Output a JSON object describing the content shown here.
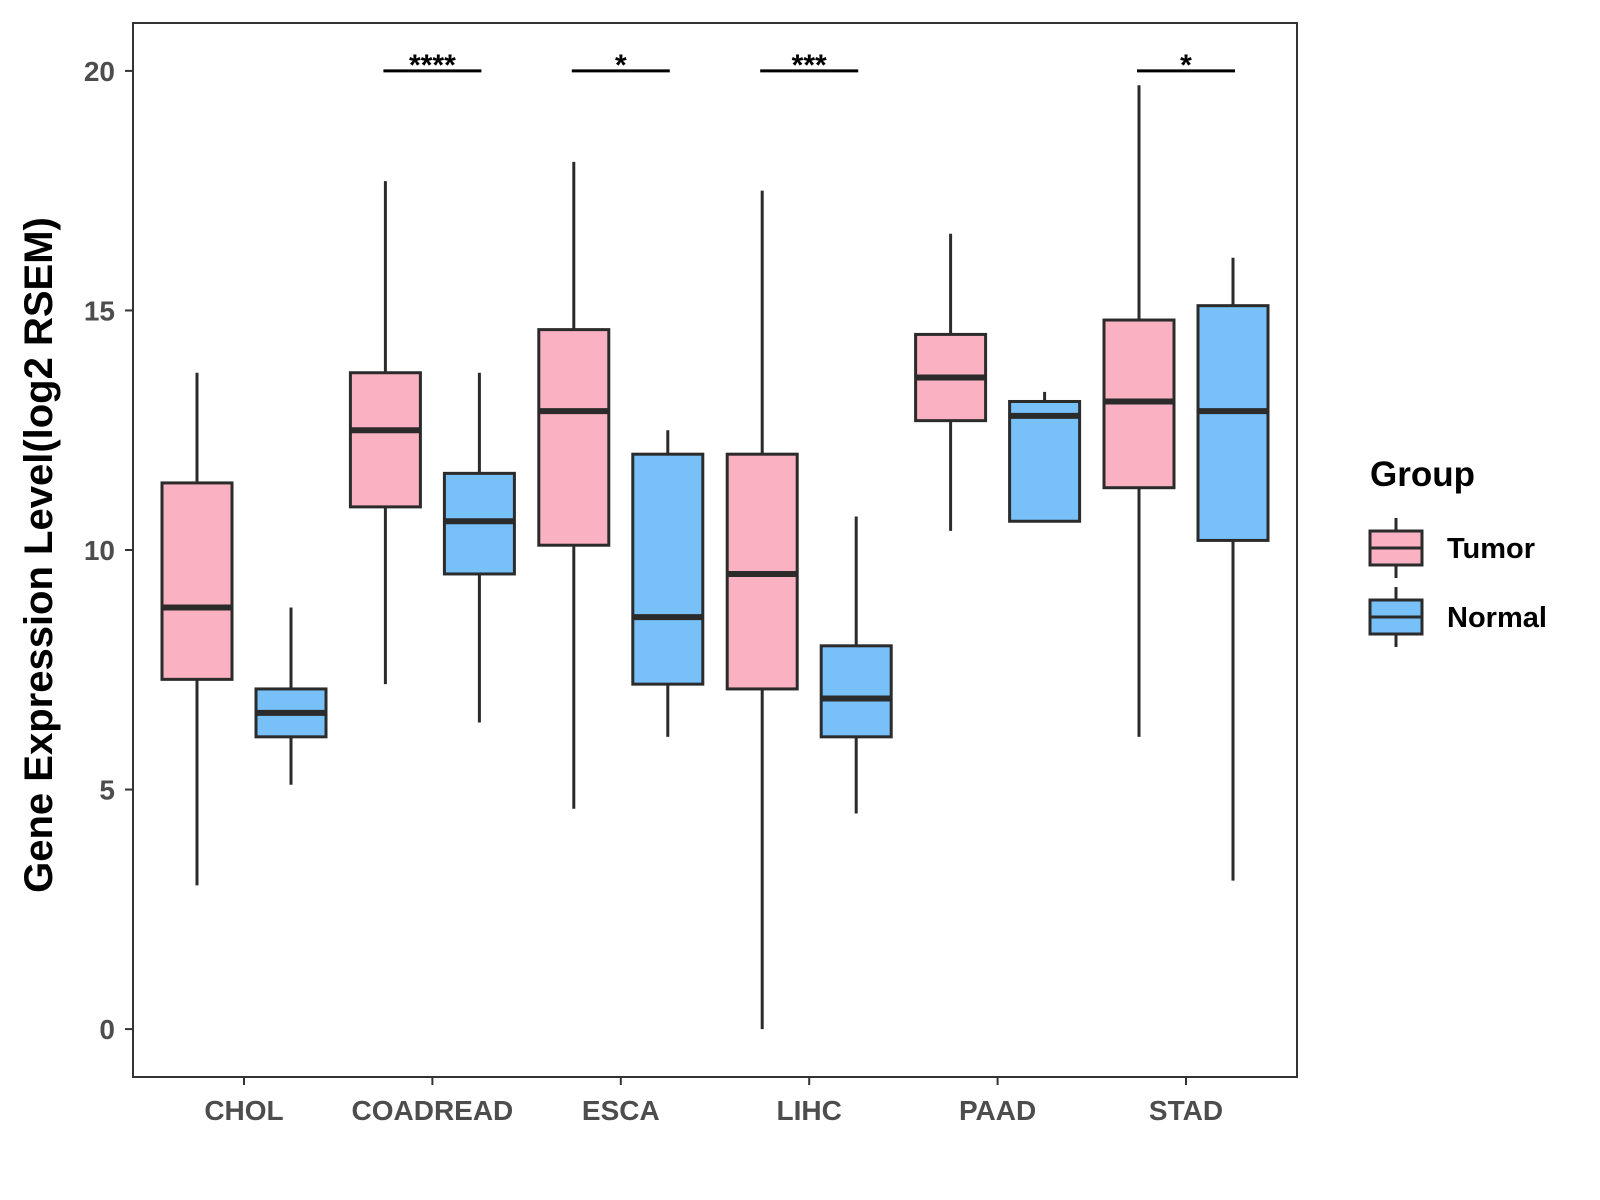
{
  "chart_data": {
    "type": "box",
    "title": "",
    "xlabel": "",
    "ylabel": "Gene Expression Level(log2 RSEM)",
    "ylim": [
      -1,
      21
    ],
    "yticks": [
      0,
      5,
      10,
      15,
      20
    ],
    "grid": false,
    "categories": [
      "CHOL",
      "COADREAD",
      "ESCA",
      "LIHC",
      "PAAD",
      "STAD"
    ],
    "legend": {
      "title": "Group",
      "position": "right"
    },
    "series": [
      {
        "name": "Tumor",
        "color": "#FAB1C2",
        "boxes": [
          {
            "category": "CHOL",
            "min": 3.0,
            "q1": 7.3,
            "median": 8.8,
            "q3": 11.4,
            "max": 13.7
          },
          {
            "category": "COADREAD",
            "min": 7.2,
            "q1": 10.9,
            "median": 12.5,
            "q3": 13.7,
            "max": 17.7
          },
          {
            "category": "ESCA",
            "min": 4.6,
            "q1": 10.1,
            "median": 12.9,
            "q3": 14.6,
            "max": 18.1
          },
          {
            "category": "LIHC",
            "min": 0.0,
            "q1": 7.1,
            "median": 9.5,
            "q3": 12.0,
            "max": 17.5
          },
          {
            "category": "PAAD",
            "min": 10.4,
            "q1": 12.7,
            "median": 13.6,
            "q3": 14.5,
            "max": 16.6
          },
          {
            "category": "STAD",
            "min": 6.1,
            "q1": 11.3,
            "median": 13.1,
            "q3": 14.8,
            "max": 19.7
          }
        ]
      },
      {
        "name": "Normal",
        "color": "#78C1F8",
        "boxes": [
          {
            "category": "CHOL",
            "min": 5.1,
            "q1": 6.1,
            "median": 6.6,
            "q3": 7.1,
            "max": 8.8
          },
          {
            "category": "COADREAD",
            "min": 6.4,
            "q1": 9.5,
            "median": 10.6,
            "q3": 11.6,
            "max": 13.7
          },
          {
            "category": "ESCA",
            "min": 6.1,
            "q1": 7.2,
            "median": 8.6,
            "q3": 12.0,
            "max": 12.5
          },
          {
            "category": "LIHC",
            "min": 4.5,
            "q1": 6.1,
            "median": 6.9,
            "q3": 8.0,
            "max": 10.7
          },
          {
            "category": "PAAD",
            "min": 10.6,
            "q1": 10.6,
            "median": 12.8,
            "q3": 13.1,
            "max": 13.3
          },
          {
            "category": "STAD",
            "min": 3.1,
            "q1": 10.2,
            "median": 12.9,
            "q3": 15.1,
            "max": 16.1
          }
        ]
      }
    ],
    "annotations": [
      {
        "category": "COADREAD",
        "y": 20,
        "label": "****"
      },
      {
        "category": "ESCA",
        "y": 20,
        "label": "*"
      },
      {
        "category": "LIHC",
        "y": 20,
        "label": "***"
      },
      {
        "category": "STAD",
        "y": 20,
        "label": "*"
      }
    ]
  }
}
